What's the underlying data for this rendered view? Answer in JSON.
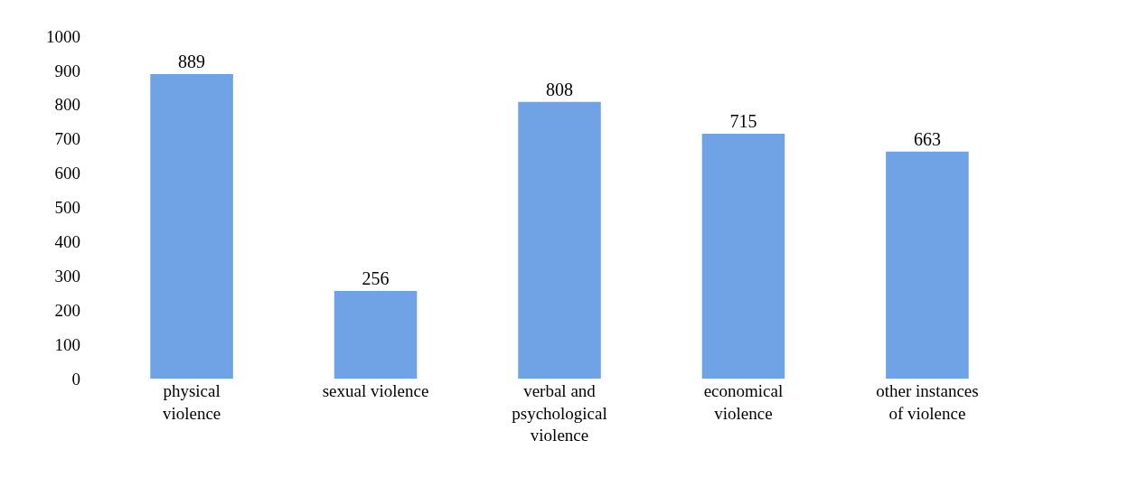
{
  "chart_data": {
    "type": "bar",
    "categories": [
      "physical violence",
      "sexual violence",
      "verbal and psychological violence",
      "economical violence",
      "other instances of violence"
    ],
    "values": [
      889,
      256,
      808,
      715,
      663
    ],
    "color": "#6fa3e6",
    "ylim": [
      0,
      1000
    ],
    "yticks": [
      0,
      100,
      200,
      300,
      400,
      500,
      600,
      700,
      800,
      900,
      1000
    ],
    "data_labels": true
  }
}
